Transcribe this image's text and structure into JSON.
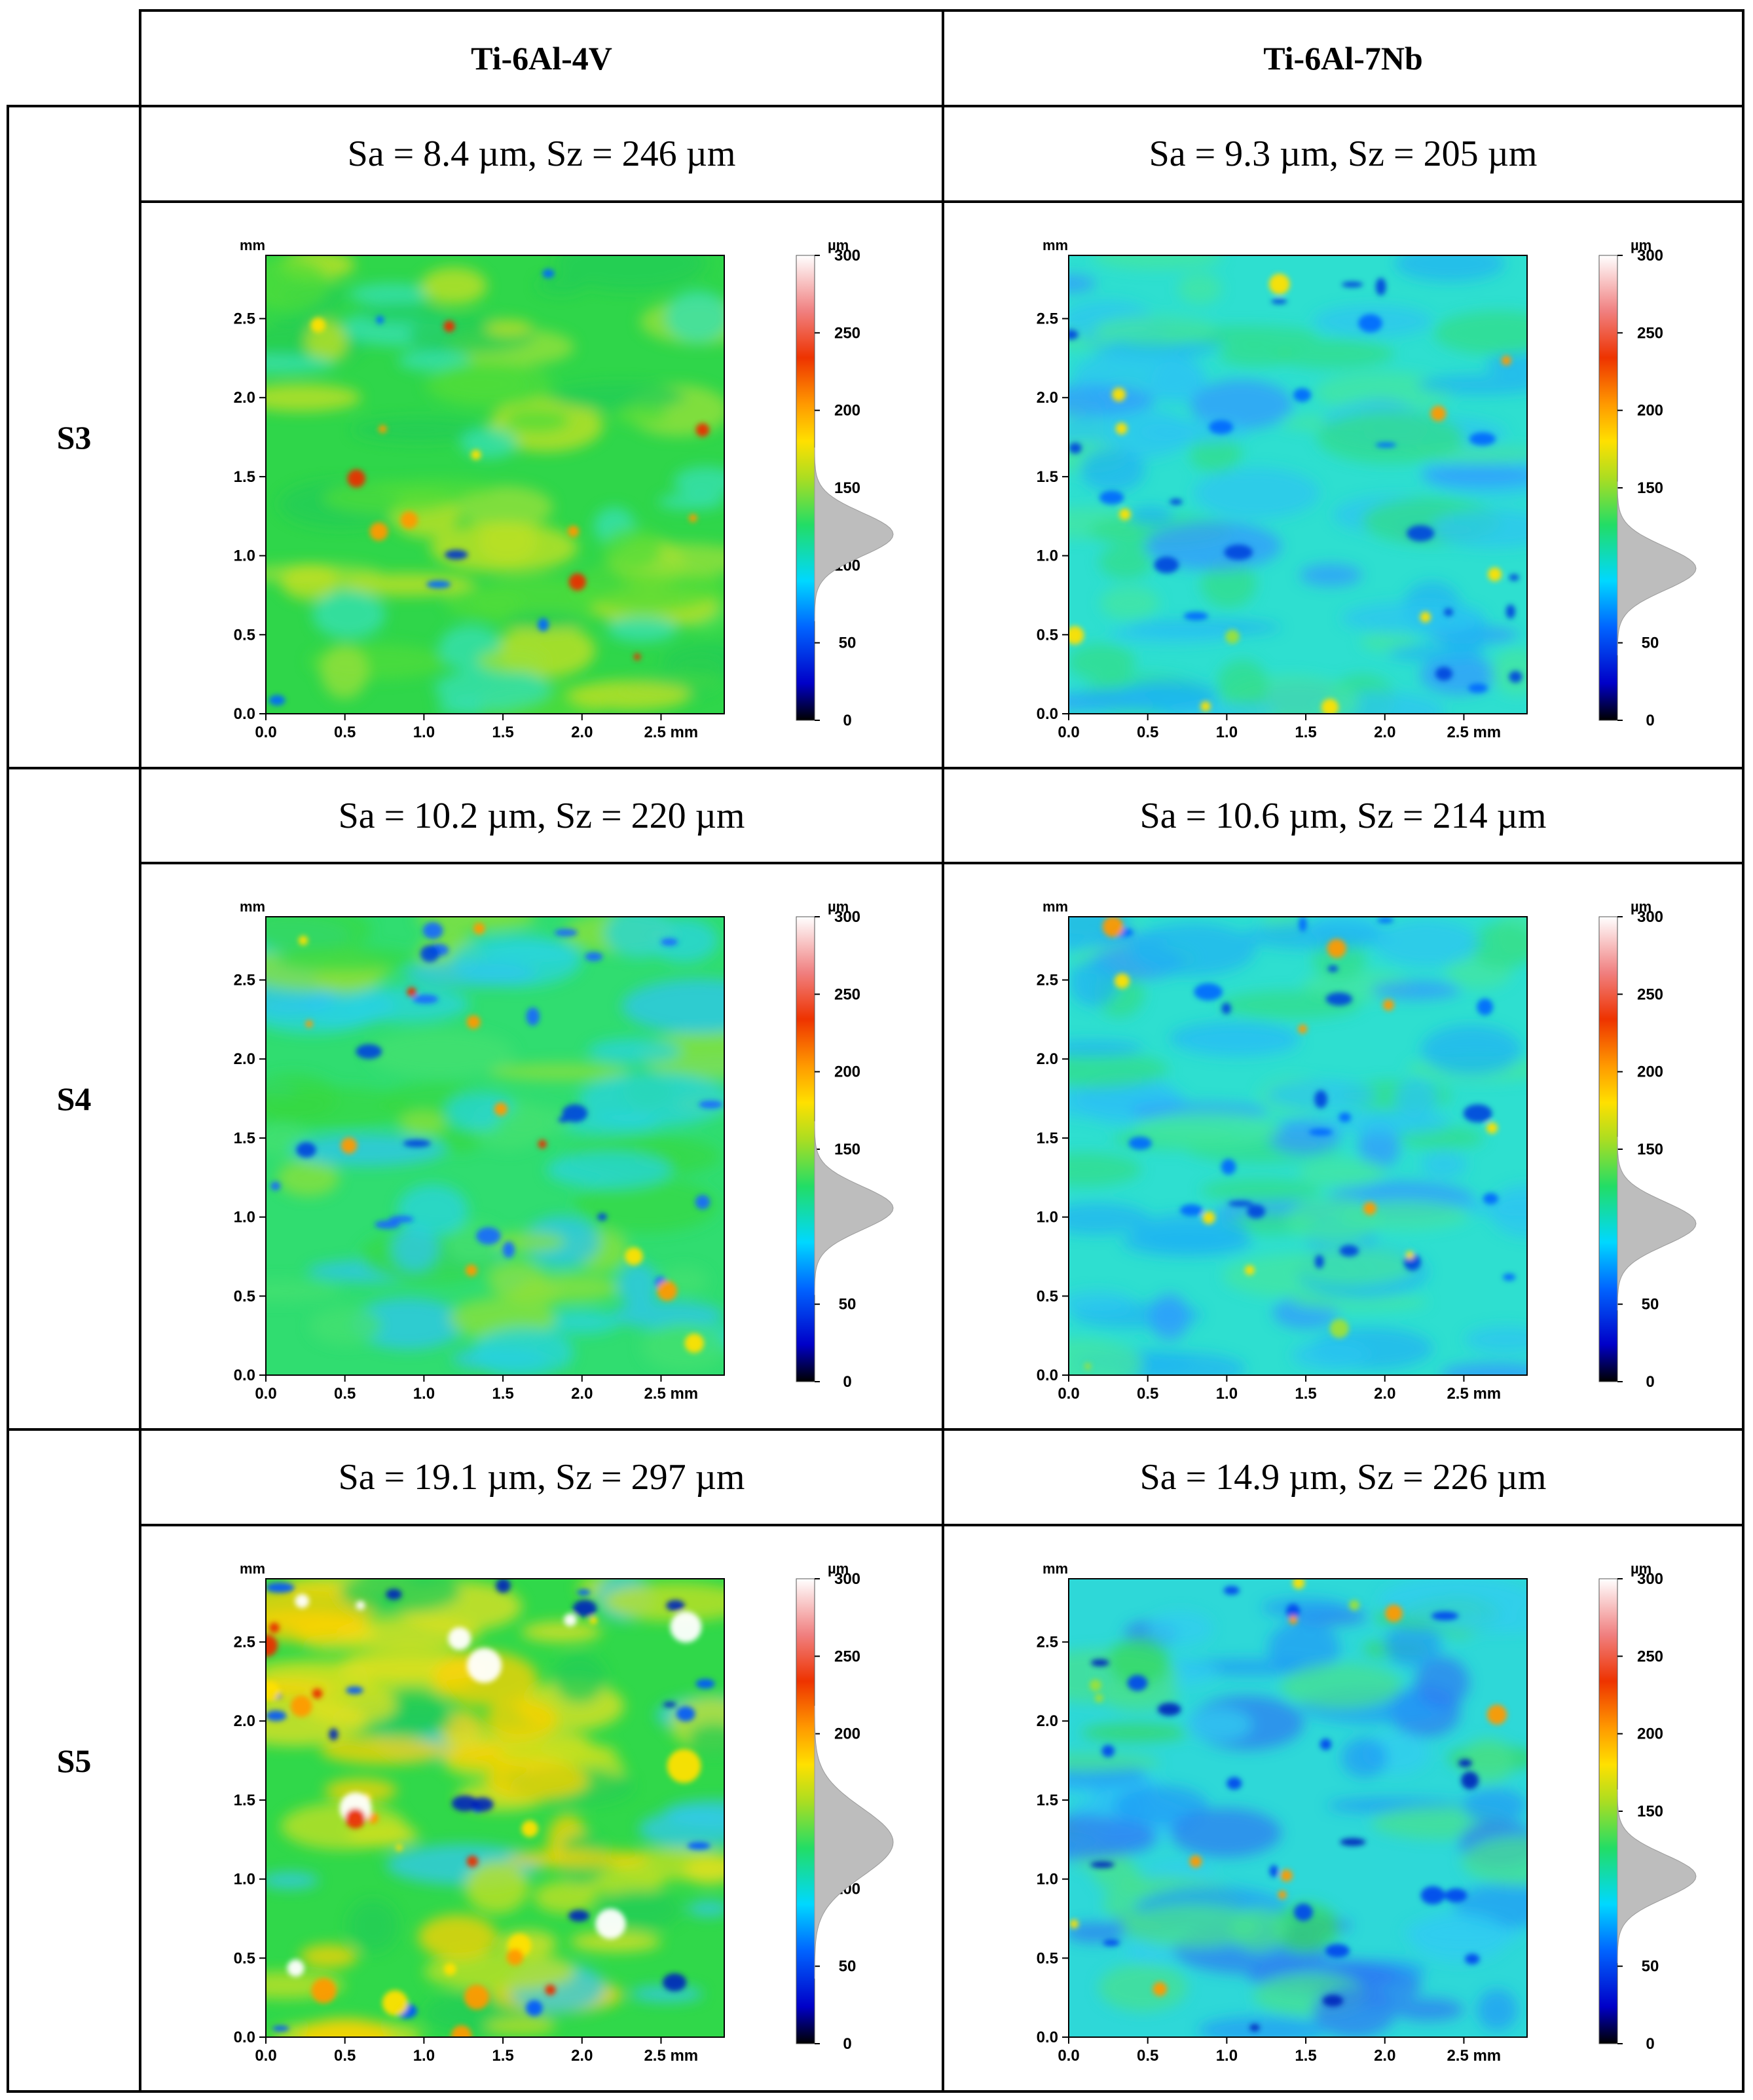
{
  "columns": [
    {
      "label": "Ti-6Al-4V"
    },
    {
      "label": "Ti-6Al-7Nb"
    }
  ],
  "rows": [
    {
      "label": "S3",
      "cells": [
        {
          "metrics": "Sa = 8.4 µm, Sz = 246 µm",
          "style": "green",
          "hist_peak": 120
        },
        {
          "metrics": "Sa = 9.3 µm, Sz = 205 µm",
          "style": "cyan",
          "hist_peak": 98
        }
      ]
    },
    {
      "label": "S4",
      "cells": [
        {
          "metrics": "Sa = 10.2 µm, Sz = 220 µm",
          "style": "mixed",
          "hist_peak": 112
        },
        {
          "metrics": "Sa = 10.6 µm, Sz = 214 µm",
          "style": "cyan",
          "hist_peak": 102
        }
      ]
    },
    {
      "label": "S5",
      "cells": [
        {
          "metrics": "Sa = 19.1 µm, Sz = 297 µm",
          "style": "hot",
          "hist_peak": 130
        },
        {
          "metrics": "Sa = 14.9 µm, Sz = 226 µm",
          "style": "cyanblue",
          "hist_peak": 108
        }
      ]
    }
  ],
  "map": {
    "y_unit": "mm",
    "y_ticks": [
      "0.0",
      "0.5",
      "1.0",
      "1.5",
      "2.0",
      "2.5"
    ],
    "x_ticks": [
      "0.0",
      "0.5",
      "1.0",
      "1.5",
      "2.0",
      "2.5 mm"
    ],
    "colorbar_unit": "µm",
    "colorbar_ticks": [
      "0",
      "50",
      "100",
      "150",
      "200",
      "250",
      "300"
    ]
  },
  "chart_data": [
    {
      "type": "heatmap",
      "title": "Ti-6Al-4V S3",
      "xlabel": "mm",
      "ylabel": "mm",
      "xlim": [
        0,
        2.9
      ],
      "ylim": [
        0,
        2.9
      ],
      "colorbar_range": [
        0,
        300
      ],
      "colorbar_unit": "µm",
      "Sa_um": 8.4,
      "Sz_um": 246
    },
    {
      "type": "heatmap",
      "title": "Ti-6Al-7Nb S3",
      "xlabel": "mm",
      "ylabel": "mm",
      "xlim": [
        0,
        2.9
      ],
      "ylim": [
        0,
        2.9
      ],
      "colorbar_range": [
        0,
        300
      ],
      "colorbar_unit": "µm",
      "Sa_um": 9.3,
      "Sz_um": 205
    },
    {
      "type": "heatmap",
      "title": "Ti-6Al-4V S4",
      "xlabel": "mm",
      "ylabel": "mm",
      "xlim": [
        0,
        2.9
      ],
      "ylim": [
        0,
        2.9
      ],
      "colorbar_range": [
        0,
        300
      ],
      "colorbar_unit": "µm",
      "Sa_um": 10.2,
      "Sz_um": 220
    },
    {
      "type": "heatmap",
      "title": "Ti-6Al-7Nb S4",
      "xlabel": "mm",
      "ylabel": "mm",
      "xlim": [
        0,
        2.9
      ],
      "ylim": [
        0,
        2.9
      ],
      "colorbar_range": [
        0,
        300
      ],
      "colorbar_unit": "µm",
      "Sa_um": 10.6,
      "Sz_um": 214
    },
    {
      "type": "heatmap",
      "title": "Ti-6Al-4V S5",
      "xlabel": "mm",
      "ylabel": "mm",
      "xlim": [
        0,
        2.9
      ],
      "ylim": [
        0,
        2.9
      ],
      "colorbar_range": [
        0,
        300
      ],
      "colorbar_unit": "µm",
      "Sa_um": 19.1,
      "Sz_um": 297
    },
    {
      "type": "heatmap",
      "title": "Ti-6Al-7Nb S5",
      "xlabel": "mm",
      "ylabel": "mm",
      "xlim": [
        0,
        2.9
      ],
      "ylim": [
        0,
        2.9
      ],
      "colorbar_range": [
        0,
        300
      ],
      "colorbar_unit": "µm",
      "Sa_um": 14.9,
      "Sz_um": 226
    }
  ]
}
